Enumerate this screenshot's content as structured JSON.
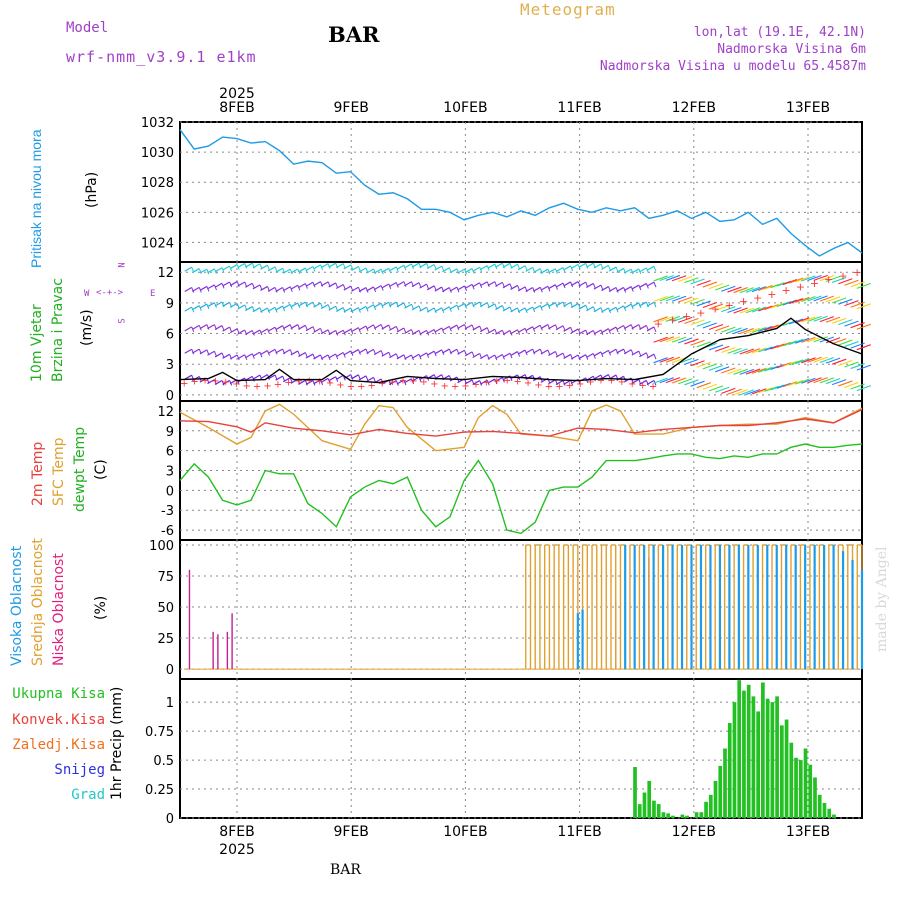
{
  "header": {
    "model_label": "Model",
    "model_name": "wrf-nmm_v3.9.1 e1km",
    "station": "BAR",
    "meteogram": "Meteogram",
    "lonlat": "lon,lat (19.1E, 42.1N)",
    "altitude": "Nadmorska Visina 6m",
    "model_altitude": "Nadmorska Visina u modelu 65.4587m"
  },
  "footer": {
    "station": "BAR",
    "watermark": "made by Angel"
  },
  "colors": {
    "pressure": "#1e9be6",
    "temp2m": "#e8413c",
    "sfc": "#e0a030",
    "dewpt": "#22c022",
    "precip_total": "#22c022",
    "purple": "#a020f0",
    "cyan": "#20c8c8"
  },
  "axes": {
    "year": "2025",
    "days": [
      "8FEB",
      "9FEB",
      "10FEB",
      "11FEB",
      "12FEB",
      "13FEB"
    ]
  },
  "panels": {
    "pressure": {
      "label": "Pritisak na nivou mora",
      "unit": "(hPa)"
    },
    "wind": {
      "label1": "10m Vjetar",
      "label2": "Brzina i Pravac",
      "unit": "(m/s)",
      "compass_n": "N",
      "compass_s": "S",
      "compass_w": "W",
      "compass_e": "E"
    },
    "temp": {
      "label1": "2m Temp",
      "label2": "SFC Temp",
      "label3": "dewpt Temp",
      "unit": "(C)"
    },
    "cloud": {
      "label1": "Visoka Oblacnost",
      "label2": "Srednja Oblacnost",
      "label3": "Niska Oblacnost",
      "unit": "(%)"
    },
    "precip": {
      "label1": "Ukupna Kisa",
      "label2": "Konvek.Kisa",
      "label3": "Zaledj.Kisa",
      "label4": "Snijeg",
      "label5": "Grad",
      "unit": "1hr Precip (mm)"
    }
  },
  "chart_data": [
    {
      "type": "line",
      "ylabel": "(hPa)",
      "ylim": [
        1022.7,
        1032
      ],
      "yticks": [
        1024,
        1026,
        1028,
        1030,
        1032
      ],
      "grid": true,
      "series": [
        {
          "name": "Pritisak na nivou mora",
          "x": [
            0,
            3,
            6,
            9,
            12,
            15,
            18,
            21,
            24,
            27,
            30,
            33,
            36,
            39,
            42,
            45,
            48,
            51,
            54,
            57,
            60,
            63,
            66,
            69,
            72,
            75,
            78,
            81,
            84,
            87,
            90,
            93,
            96,
            99,
            102,
            105,
            108,
            111,
            114,
            117,
            120,
            123,
            126,
            129,
            132,
            135,
            138,
            141,
            144
          ],
          "y": [
            1031.5,
            1030.2,
            1030.4,
            1031.0,
            1030.9,
            1030.6,
            1030.7,
            1030.1,
            1029.2,
            1029.4,
            1029.3,
            1028.6,
            1028.7,
            1027.8,
            1027.2,
            1027.3,
            1026.9,
            1026.2,
            1026.2,
            1026.0,
            1025.5,
            1025.8,
            1026.0,
            1025.7,
            1026.1,
            1025.8,
            1026.3,
            1026.6,
            1026.2,
            1026.0,
            1026.3,
            1026.1,
            1026.3,
            1025.6,
            1025.8,
            1026.1,
            1025.6,
            1026.0,
            1025.4,
            1025.5,
            1026.0,
            1025.2,
            1025.6,
            1024.6,
            1023.8,
            1023.1,
            1023.6,
            1024.0,
            1023.3
          ]
        }
      ]
    },
    {
      "type": "line",
      "ylabel": "(m/s)",
      "ylim": [
        -0.6,
        13
      ],
      "yticks": [
        0,
        3,
        6,
        9,
        12
      ],
      "grid": true,
      "series": [
        {
          "name": "10m Vjetar",
          "x": [
            0,
            6,
            9,
            12,
            18,
            21,
            24,
            30,
            33,
            36,
            42,
            48,
            54,
            60,
            66,
            72,
            78,
            84,
            90,
            96,
            102,
            108,
            114,
            120,
            126,
            129,
            132,
            138,
            144
          ],
          "y": [
            1.5,
            1.6,
            2.2,
            1.4,
            1.5,
            2.5,
            1.5,
            1.5,
            2.4,
            1.4,
            1.2,
            1.8,
            1.6,
            1.5,
            1.8,
            1.7,
            1.5,
            1.4,
            1.6,
            1.5,
            2.0,
            4.0,
            5.4,
            5.8,
            6.5,
            7.5,
            6.4,
            5.0,
            4.0
          ]
        }
      ]
    },
    {
      "type": "line",
      "ylabel": "(C)",
      "ylim": [
        -7.5,
        13.5
      ],
      "yticks": [
        -6,
        -3,
        0,
        3,
        6,
        9,
        12
      ],
      "grid": true,
      "series": [
        {
          "name": "2m Temp",
          "x": [
            0,
            6,
            12,
            15,
            18,
            24,
            30,
            36,
            42,
            48,
            54,
            60,
            66,
            72,
            78,
            84,
            90,
            96,
            102,
            108,
            114,
            120,
            126,
            132,
            138,
            144
          ],
          "y": [
            10.5,
            10.4,
            9.6,
            8.8,
            10.2,
            9.4,
            9.0,
            8.4,
            9.2,
            8.6,
            8.2,
            8.8,
            8.9,
            8.6,
            8.2,
            9.4,
            9.2,
            8.7,
            9.2,
            9.5,
            9.8,
            9.8,
            10.2,
            10.8,
            10.2,
            12.2
          ]
        },
        {
          "name": "SFC Temp",
          "x": [
            0,
            6,
            12,
            15,
            18,
            21,
            24,
            30,
            36,
            39,
            42,
            45,
            48,
            54,
            60,
            63,
            66,
            69,
            72,
            78,
            84,
            87,
            90,
            93,
            96,
            102,
            108,
            114,
            120,
            126,
            132,
            138,
            144
          ],
          "y": [
            11.8,
            9.5,
            7.0,
            8.0,
            12.0,
            13.0,
            11.5,
            7.5,
            6.2,
            10.0,
            12.8,
            12.5,
            9.5,
            6.0,
            6.5,
            11.0,
            12.8,
            11.5,
            8.5,
            8.2,
            7.5,
            12.0,
            12.9,
            12.0,
            8.5,
            8.5,
            9.5,
            9.8,
            10.0,
            10.0,
            11.0,
            10.2,
            12.4
          ]
        },
        {
          "name": "dewpt Temp",
          "x": [
            0,
            3,
            6,
            9,
            12,
            15,
            18,
            21,
            24,
            27,
            30,
            33,
            36,
            39,
            42,
            45,
            48,
            51,
            54,
            57,
            60,
            63,
            66,
            69,
            72,
            75,
            78,
            81,
            84,
            87,
            90,
            93,
            96,
            99,
            102,
            105,
            108,
            111,
            114,
            117,
            120,
            123,
            126,
            129,
            132,
            135,
            138,
            141,
            144
          ],
          "y": [
            1.5,
            4.0,
            2.0,
            -1.5,
            -2.2,
            -1.5,
            3.0,
            2.5,
            2.5,
            -2.0,
            -3.5,
            -5.5,
            -1.0,
            0.5,
            1.5,
            1.0,
            2.0,
            -3.0,
            -5.5,
            -4.0,
            1.5,
            4.5,
            1.0,
            -6.0,
            -6.5,
            -4.8,
            0.0,
            0.5,
            0.5,
            2.0,
            4.5,
            4.5,
            4.5,
            4.8,
            5.2,
            5.5,
            5.5,
            5.0,
            4.8,
            5.2,
            5.0,
            5.5,
            5.5,
            6.5,
            7.0,
            6.5,
            6.5,
            6.8,
            7.0
          ]
        }
      ]
    },
    {
      "type": "bar",
      "ylabel": "(%)",
      "ylim": [
        -8,
        104
      ],
      "yticks": [
        0,
        25,
        50,
        75,
        100
      ],
      "grid": true,
      "series": [
        {
          "name": "Niska Oblacnost",
          "x": [
            2,
            7,
            8,
            10,
            11,
            92,
            99,
            104,
            106
          ],
          "values": [
            80,
            30,
            28,
            30,
            45,
            55,
            90,
            100,
            100
          ]
        },
        {
          "name": "Srednja Oblacnost",
          "x": [
            73,
            75,
            77,
            79,
            81,
            83,
            85,
            87,
            89,
            91,
            93,
            95,
            97,
            99,
            101,
            103,
            105,
            107,
            109,
            111,
            113,
            115,
            117,
            119,
            121,
            123,
            125,
            127,
            129,
            131,
            133,
            135,
            137,
            139,
            141,
            143
          ],
          "values": [
            100,
            100,
            100,
            100,
            100,
            100,
            100,
            100,
            100,
            100,
            100,
            100,
            100,
            100,
            100,
            100,
            100,
            100,
            100,
            100,
            100,
            100,
            100,
            100,
            100,
            100,
            100,
            100,
            100,
            100,
            100,
            100,
            100,
            100,
            100,
            100
          ]
        },
        {
          "name": "Visoka Oblacnost",
          "x": [
            84,
            85,
            94,
            96,
            98,
            100,
            102,
            104,
            106,
            108,
            110,
            112,
            114,
            116,
            118,
            120,
            122,
            124,
            126,
            128,
            130,
            132,
            134,
            136,
            138,
            140,
            142,
            144
          ],
          "values": [
            45,
            48,
            100,
            100,
            100,
            100,
            100,
            100,
            100,
            100,
            100,
            100,
            100,
            100,
            100,
            100,
            100,
            100,
            100,
            100,
            100,
            100,
            100,
            100,
            100,
            95,
            88,
            80
          ]
        }
      ]
    },
    {
      "type": "bar",
      "ylabel": "1hr Precip (mm)",
      "ylim": [
        0,
        1.2
      ],
      "yticks": [
        0,
        0.25,
        0.5,
        0.75,
        1
      ],
      "grid": true,
      "series": [
        {
          "name": "Ukupna Kisa",
          "x": [
            96,
            97,
            98,
            99,
            100,
            101,
            102,
            103,
            104,
            106,
            107,
            109,
            110,
            111,
            112,
            113,
            114,
            115,
            116,
            117,
            118,
            119,
            120,
            121,
            122,
            123,
            124,
            125,
            126,
            127,
            128,
            129,
            130,
            131,
            132,
            133,
            134,
            135,
            136,
            137,
            138
          ],
          "values": [
            0.44,
            0.12,
            0.22,
            0.32,
            0.15,
            0.12,
            0.05,
            0.04,
            0.02,
            0.03,
            0.02,
            0.05,
            0.05,
            0.14,
            0.2,
            0.32,
            0.45,
            0.6,
            0.82,
            1.0,
            1.19,
            1.1,
            1.15,
            1.05,
            0.92,
            1.17,
            1.03,
            1.0,
            1.05,
            0.8,
            0.85,
            0.65,
            0.52,
            0.5,
            0.6,
            0.46,
            0.35,
            0.2,
            0.13,
            0.08,
            0.03
          ]
        }
      ]
    }
  ]
}
